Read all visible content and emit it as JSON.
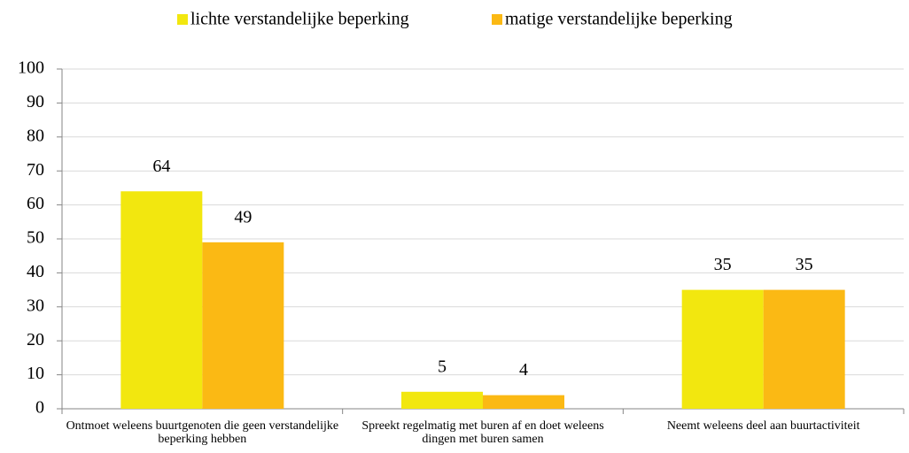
{
  "chart_data": {
    "type": "bar",
    "categories": [
      "Ontmoet weleens buurtgenoten die geen verstandelijke beperking hebben",
      "Spreekt regelmatig met buren af en doet weleens dingen met buren samen",
      "Neemt weleens deel aan buurtactiviteit"
    ],
    "series": [
      {
        "name": "lichte verstandelijke beperking",
        "color": "#f2e70f",
        "values": [
          64,
          5,
          35
        ]
      },
      {
        "name": "matige verstandelijke beperking",
        "color": "#fbb914",
        "values": [
          49,
          4,
          35
        ]
      }
    ],
    "ylim": [
      0,
      100
    ],
    "yticks": [
      0,
      10,
      20,
      30,
      40,
      50,
      60,
      70,
      80,
      90,
      100
    ],
    "grid": true,
    "legend": "top"
  }
}
